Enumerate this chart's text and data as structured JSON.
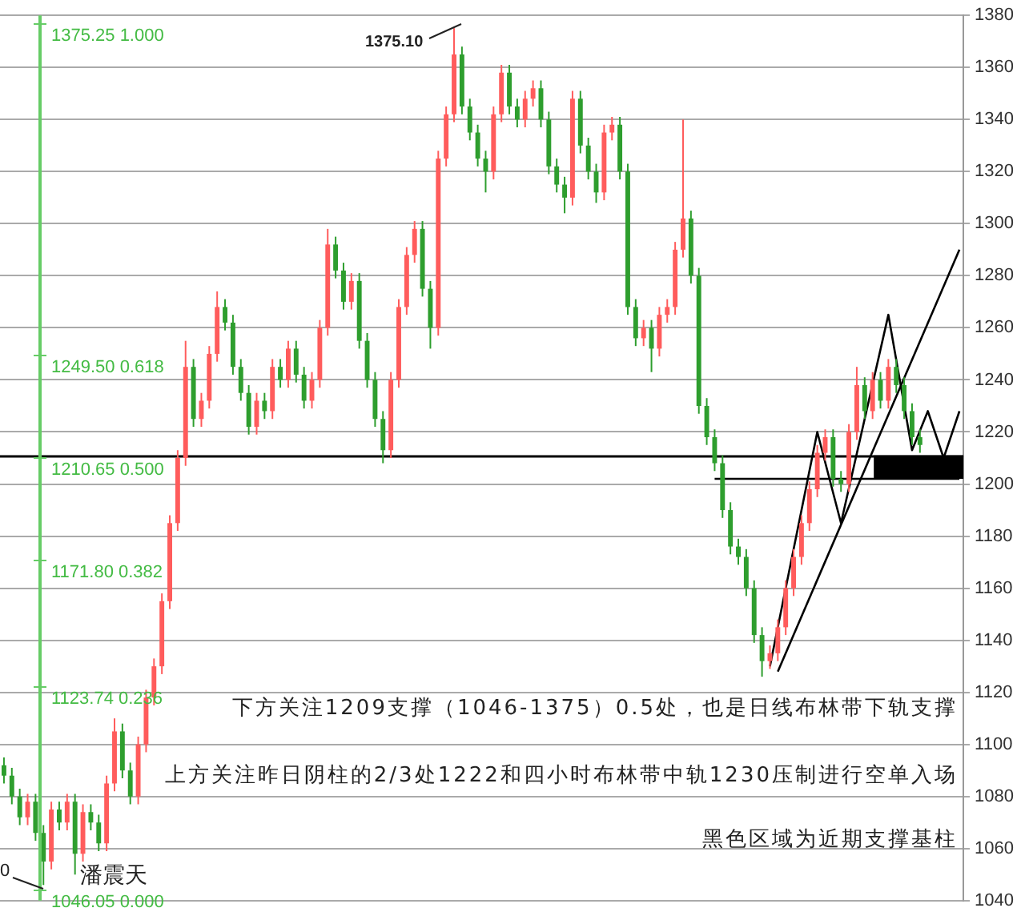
{
  "chart_data": {
    "type": "candlestick",
    "categories": [
      null,
      null,
      null,
      null,
      null,
      null,
      null,
      null,
      null,
      null,
      null,
      null,
      null,
      null,
      null,
      null,
      null,
      null,
      null,
      null,
      null,
      null,
      null,
      null,
      null,
      null,
      null,
      null,
      null,
      null,
      null,
      null,
      null,
      null,
      null,
      null,
      null,
      null,
      null,
      null,
      null,
      null,
      null,
      null,
      null,
      null,
      null,
      null,
      null,
      null,
      null,
      null,
      null,
      null,
      null,
      null,
      null,
      null,
      null,
      null,
      null,
      null,
      null,
      null,
      null,
      null,
      null,
      null,
      null,
      null,
      null,
      null,
      null,
      null,
      null,
      null,
      null,
      null,
      null,
      null,
      null,
      null,
      null,
      null,
      null,
      null,
      null,
      null,
      null,
      null,
      null,
      null,
      null,
      null,
      null,
      null,
      null,
      null,
      null,
      null,
      null,
      null,
      null,
      null,
      null,
      null,
      null,
      null,
      null,
      null,
      null,
      null,
      null,
      null,
      null,
      null,
      null,
      null,
      null,
      null,
      null,
      null
    ],
    "ohlc": [
      [
        1092,
        1095,
        1085,
        1088
      ],
      [
        1088,
        1091,
        1077,
        1080
      ],
      [
        1080,
        1083,
        1069,
        1072
      ],
      [
        1072,
        1081,
        1069,
        1078
      ],
      [
        1078,
        1081,
        1063,
        1066
      ],
      [
        1066,
        1069,
        1046,
        1055
      ],
      [
        1055,
        1078,
        1052,
        1075
      ],
      [
        1075,
        1078,
        1067,
        1070
      ],
      [
        1070,
        1081,
        1067,
        1078
      ],
      [
        1078,
        1081,
        1050,
        1058
      ],
      [
        1058,
        1077,
        1055,
        1074
      ],
      [
        1074,
        1077,
        1067,
        1070
      ],
      [
        1070,
        1073,
        1059,
        1062
      ],
      [
        1062,
        1088,
        1059,
        1085
      ],
      [
        1085,
        1110,
        1082,
        1105
      ],
      [
        1105,
        1108,
        1087,
        1090
      ],
      [
        1090,
        1093,
        1077,
        1080
      ],
      [
        1080,
        1103,
        1077,
        1100
      ],
      [
        1100,
        1121,
        1097,
        1118
      ],
      [
        1118,
        1133,
        1115,
        1130
      ],
      [
        1130,
        1158,
        1127,
        1155
      ],
      [
        1155,
        1188,
        1152,
        1185
      ],
      [
        1185,
        1213,
        1182,
        1210
      ],
      [
        1210,
        1255,
        1207,
        1245
      ],
      [
        1245,
        1248,
        1222,
        1225
      ],
      [
        1225,
        1235,
        1222,
        1232
      ],
      [
        1232,
        1253,
        1229,
        1250
      ],
      [
        1250,
        1274,
        1247,
        1268
      ],
      [
        1268,
        1271,
        1259,
        1262
      ],
      [
        1262,
        1265,
        1242,
        1245
      ],
      [
        1245,
        1248,
        1232,
        1235
      ],
      [
        1235,
        1238,
        1219,
        1222
      ],
      [
        1222,
        1235,
        1219,
        1232
      ],
      [
        1232,
        1235,
        1225,
        1228
      ],
      [
        1228,
        1248,
        1225,
        1245
      ],
      [
        1245,
        1248,
        1237,
        1240
      ],
      [
        1240,
        1255,
        1237,
        1252
      ],
      [
        1252,
        1255,
        1239,
        1242
      ],
      [
        1242,
        1245,
        1229,
        1232
      ],
      [
        1232,
        1243,
        1229,
        1240
      ],
      [
        1240,
        1263,
        1237,
        1260
      ],
      [
        1260,
        1298,
        1257,
        1292
      ],
      [
        1292,
        1295,
        1279,
        1282
      ],
      [
        1282,
        1285,
        1267,
        1270
      ],
      [
        1270,
        1281,
        1267,
        1278
      ],
      [
        1278,
        1281,
        1252,
        1255
      ],
      [
        1255,
        1258,
        1237,
        1240
      ],
      [
        1240,
        1243,
        1222,
        1225
      ],
      [
        1225,
        1228,
        1208,
        1213
      ],
      [
        1213,
        1243,
        1210,
        1240
      ],
      [
        1240,
        1271,
        1237,
        1268
      ],
      [
        1268,
        1291,
        1265,
        1288
      ],
      [
        1288,
        1301,
        1285,
        1298
      ],
      [
        1298,
        1301,
        1272,
        1275
      ],
      [
        1275,
        1278,
        1252,
        1260
      ],
      [
        1260,
        1328,
        1257,
        1325
      ],
      [
        1325,
        1345,
        1322,
        1342
      ],
      [
        1342,
        1375.1,
        1339,
        1365
      ],
      [
        1365,
        1368,
        1342,
        1345
      ],
      [
        1345,
        1348,
        1332,
        1335
      ],
      [
        1335,
        1338,
        1322,
        1325
      ],
      [
        1325,
        1328,
        1312,
        1320
      ],
      [
        1320,
        1345,
        1317,
        1342
      ],
      [
        1342,
        1361,
        1339,
        1358
      ],
      [
        1358,
        1361,
        1342,
        1345
      ],
      [
        1345,
        1348,
        1337,
        1340
      ],
      [
        1340,
        1351,
        1337,
        1348
      ],
      [
        1348,
        1355,
        1345,
        1352
      ],
      [
        1352,
        1355,
        1337,
        1340
      ],
      [
        1340,
        1343,
        1319,
        1322
      ],
      [
        1322,
        1325,
        1312,
        1315
      ],
      [
        1315,
        1318,
        1304,
        1310
      ],
      [
        1310,
        1351,
        1307,
        1348
      ],
      [
        1348,
        1351,
        1327,
        1330
      ],
      [
        1330,
        1333,
        1317,
        1320
      ],
      [
        1320,
        1323,
        1308,
        1312
      ],
      [
        1312,
        1338,
        1309,
        1335
      ],
      [
        1335,
        1341,
        1332,
        1338
      ],
      [
        1338,
        1341,
        1317,
        1320
      ],
      [
        1320,
        1323,
        1265,
        1268
      ],
      [
        1268,
        1271,
        1253,
        1256
      ],
      [
        1256,
        1263,
        1253,
        1260
      ],
      [
        1260,
        1263,
        1243,
        1252
      ],
      [
        1252,
        1268,
        1249,
        1265
      ],
      [
        1265,
        1271,
        1262,
        1268
      ],
      [
        1268,
        1293,
        1265,
        1290
      ],
      [
        1290,
        1340,
        1287,
        1302
      ],
      [
        1302,
        1305,
        1277,
        1280
      ],
      [
        1280,
        1283,
        1227,
        1230
      ],
      [
        1230,
        1233,
        1215,
        1218
      ],
      [
        1218,
        1221,
        1205,
        1208
      ],
      [
        1208,
        1211,
        1187,
        1190
      ],
      [
        1190,
        1193,
        1173,
        1176
      ],
      [
        1176,
        1179,
        1169,
        1172
      ],
      [
        1172,
        1175,
        1157,
        1160
      ],
      [
        1160,
        1163,
        1139,
        1142
      ],
      [
        1142,
        1145,
        1126,
        1132
      ],
      [
        1132,
        1138,
        1129,
        1135
      ],
      [
        1135,
        1148,
        1132,
        1145
      ],
      [
        1145,
        1163,
        1142,
        1160
      ],
      [
        1160,
        1175,
        1157,
        1172
      ],
      [
        1172,
        1188,
        1169,
        1185
      ],
      [
        1185,
        1201,
        1182,
        1198
      ],
      [
        1198,
        1215,
        1195,
        1212
      ],
      [
        1212,
        1221,
        1209,
        1218
      ],
      [
        1218,
        1221,
        1199,
        1202
      ],
      [
        1202,
        1205,
        1197,
        1200
      ],
      [
        1200,
        1223,
        1197,
        1220
      ],
      [
        1220,
        1245,
        1217,
        1238
      ],
      [
        1238,
        1241,
        1225,
        1228
      ],
      [
        1228,
        1243,
        1225,
        1240
      ],
      [
        1240,
        1243,
        1229,
        1232
      ],
      [
        1232,
        1248,
        1229,
        1245
      ],
      [
        1245,
        1248,
        1235,
        1238
      ],
      [
        1238,
        1241,
        1225,
        1228
      ],
      [
        1228,
        1231,
        1215,
        1218
      ],
      [
        1218,
        1221,
        1212,
        1215
      ],
      null,
      null,
      null,
      null,
      null
    ],
    "colors": [
      "#2e9e2e",
      "#2e9e2e",
      "#2e9e2e",
      "#ff5c5c",
      "#2e9e2e",
      "#2e9e2e",
      "#ff5c5c",
      "#2e9e2e",
      "#ff5c5c",
      "#2e9e2e",
      "#ff5c5c",
      "#2e9e2e",
      "#2e9e2e",
      "#ff5c5c",
      "#ff5c5c",
      "#2e9e2e",
      "#2e9e2e",
      "#ff5c5c",
      "#ff5c5c",
      "#ff5c5c",
      "#ff5c5c",
      "#ff5c5c",
      "#ff5c5c",
      "#ff5c5c",
      "#2e9e2e",
      "#ff5c5c",
      "#ff5c5c",
      "#ff5c5c",
      "#2e9e2e",
      "#2e9e2e",
      "#2e9e2e",
      "#2e9e2e",
      "#ff5c5c",
      "#2e9e2e",
      "#ff5c5c",
      "#2e9e2e",
      "#ff5c5c",
      "#2e9e2e",
      "#2e9e2e",
      "#ff5c5c",
      "#ff5c5c",
      "#ff5c5c",
      "#2e9e2e",
      "#2e9e2e",
      "#ff5c5c",
      "#2e9e2e",
      "#2e9e2e",
      "#2e9e2e",
      "#2e9e2e",
      "#ff5c5c",
      "#ff5c5c",
      "#ff5c5c",
      "#ff5c5c",
      "#2e9e2e",
      "#2e9e2e",
      "#ff5c5c",
      "#ff5c5c",
      "#ff5c5c",
      "#2e9e2e",
      "#2e9e2e",
      "#2e9e2e",
      "#2e9e2e",
      "#ff5c5c",
      "#ff5c5c",
      "#2e9e2e",
      "#2e9e2e",
      "#ff5c5c",
      "#ff5c5c",
      "#2e9e2e",
      "#2e9e2e",
      "#2e9e2e",
      "#2e9e2e",
      "#ff5c5c",
      "#2e9e2e",
      "#2e9e2e",
      "#2e9e2e",
      "#ff5c5c",
      "#ff5c5c",
      "#2e9e2e",
      "#2e9e2e",
      "#2e9e2e",
      "#ff5c5c",
      "#2e9e2e",
      "#ff5c5c",
      "#ff5c5c",
      "#ff5c5c",
      "#ff5c5c",
      "#2e9e2e",
      "#2e9e2e",
      "#2e9e2e",
      "#2e9e2e",
      "#2e9e2e",
      "#2e9e2e",
      "#2e9e2e",
      "#2e9e2e",
      "#2e9e2e",
      "#2e9e2e",
      "#ff5c5c",
      "#ff5c5c",
      "#ff5c5c",
      "#ff5c5c",
      "#ff5c5c",
      "#ff5c5c",
      "#ff5c5c",
      "#ff5c5c",
      "#2e9e2e",
      "#2e9e2e",
      "#ff5c5c",
      "#ff5c5c",
      "#2e9e2e",
      "#ff5c5c",
      "#2e9e2e",
      "#ff5c5c",
      "#2e9e2e",
      "#2e9e2e",
      "#2e9e2e",
      "#2e9e2e",
      null,
      null,
      null,
      null,
      null
    ],
    "series": [
      {
        "type": "line",
        "color": "#000000",
        "values": [
          null,
          null,
          null,
          null,
          null,
          null,
          null,
          null,
          null,
          null,
          null,
          null,
          null,
          null,
          null,
          null,
          null,
          null,
          null,
          null,
          null,
          null,
          null,
          null,
          null,
          null,
          null,
          null,
          null,
          null,
          null,
          null,
          null,
          null,
          null,
          null,
          null,
          null,
          null,
          null,
          null,
          null,
          null,
          null,
          null,
          null,
          null,
          null,
          null,
          null,
          null,
          null,
          null,
          null,
          null,
          null,
          null,
          null,
          null,
          null,
          null,
          null,
          null,
          null,
          null,
          null,
          null,
          null,
          null,
          null,
          null,
          null,
          null,
          null,
          null,
          null,
          null,
          null,
          null,
          null,
          null,
          null,
          null,
          null,
          null,
          null,
          null,
          null,
          null,
          null,
          null,
          null,
          null,
          null,
          null,
          null,
          null,
          null,
          1128,
          null,
          null,
          null,
          null,
          null,
          null,
          null,
          null,
          null,
          null,
          null,
          null,
          null,
          null,
          null,
          null,
          null,
          null,
          null,
          null,
          null,
          null,
          1290
        ]
      },
      {
        "type": "line",
        "color": "#000000",
        "values": [
          null,
          null,
          null,
          null,
          null,
          null,
          null,
          null,
          null,
          null,
          null,
          null,
          null,
          null,
          null,
          null,
          null,
          null,
          null,
          null,
          null,
          null,
          null,
          null,
          null,
          null,
          null,
          null,
          null,
          null,
          null,
          null,
          null,
          null,
          null,
          null,
          null,
          null,
          null,
          null,
          null,
          null,
          null,
          null,
          null,
          null,
          null,
          null,
          null,
          null,
          null,
          null,
          null,
          null,
          null,
          null,
          null,
          null,
          null,
          null,
          null,
          null,
          null,
          null,
          null,
          null,
          null,
          null,
          null,
          null,
          null,
          null,
          null,
          null,
          null,
          null,
          null,
          null,
          null,
          null,
          null,
          null,
          null,
          null,
          null,
          null,
          null,
          null,
          null,
          null,
          null,
          null,
          null,
          null,
          null,
          null,
          null,
          1130,
          null,
          null,
          null,
          null,
          null,
          1220,
          null,
          null,
          1185,
          null,
          null,
          null,
          null,
          null,
          1265,
          null,
          null,
          1213,
          null,
          1228,
          null,
          1210,
          null,
          1228
        ]
      },
      {
        "type": "line",
        "color": "#000000",
        "values": [
          null,
          null,
          null,
          null,
          null,
          null,
          null,
          null,
          null,
          null,
          null,
          null,
          null,
          null,
          null,
          null,
          null,
          null,
          null,
          null,
          null,
          null,
          null,
          null,
          null,
          null,
          null,
          null,
          null,
          null,
          null,
          null,
          null,
          null,
          null,
          null,
          null,
          null,
          null,
          null,
          null,
          null,
          null,
          null,
          null,
          null,
          null,
          null,
          null,
          null,
          null,
          null,
          null,
          null,
          null,
          null,
          null,
          null,
          null,
          null,
          null,
          null,
          null,
          null,
          null,
          null,
          null,
          null,
          null,
          null,
          null,
          null,
          null,
          null,
          null,
          null,
          null,
          null,
          null,
          null,
          null,
          null,
          null,
          null,
          null,
          null,
          null,
          null,
          null,
          null,
          1202,
          null,
          null,
          null,
          null,
          null,
          null,
          null,
          null,
          null,
          null,
          null,
          null,
          null,
          null,
          null,
          null,
          null,
          null,
          null,
          null,
          null,
          null,
          null,
          null,
          null,
          null,
          null,
          null,
          null,
          null,
          1202
        ]
      }
    ],
    "ref_lines": [
      {
        "axis": "y",
        "value": 1210.65,
        "color": "#000000"
      }
    ],
    "bands": [
      {
        "axis": "y",
        "from": 1202,
        "to": 1211,
        "color": "#000000"
      }
    ],
    "ylim": [
      1040,
      1380
    ],
    "yticks": [
      1040,
      1060,
      1080,
      1100,
      1120,
      1140,
      1160,
      1180,
      1200,
      1220,
      1240,
      1260,
      1280,
      1300,
      1320,
      1340,
      1360,
      1380
    ],
    "grid": "y",
    "tick_labels": "y",
    "annotations": [
      "1375.25 1.000",
      "1249.50 0.618",
      "1210.65 0.500",
      "1171.80 0.382",
      "1123.74 0.236",
      "1046.05 0.000",
      "1375.10",
      "0",
      "潘震天",
      "下方关注1209支撑（1046-1375）0.5处，也是日线布林带下轨支撑",
      "上方关注昨日阴柱的2/3处1222和四小时布林带中轨1230压制进行空单入场",
      "黑色区域为近期支撑基柱"
    ]
  }
}
